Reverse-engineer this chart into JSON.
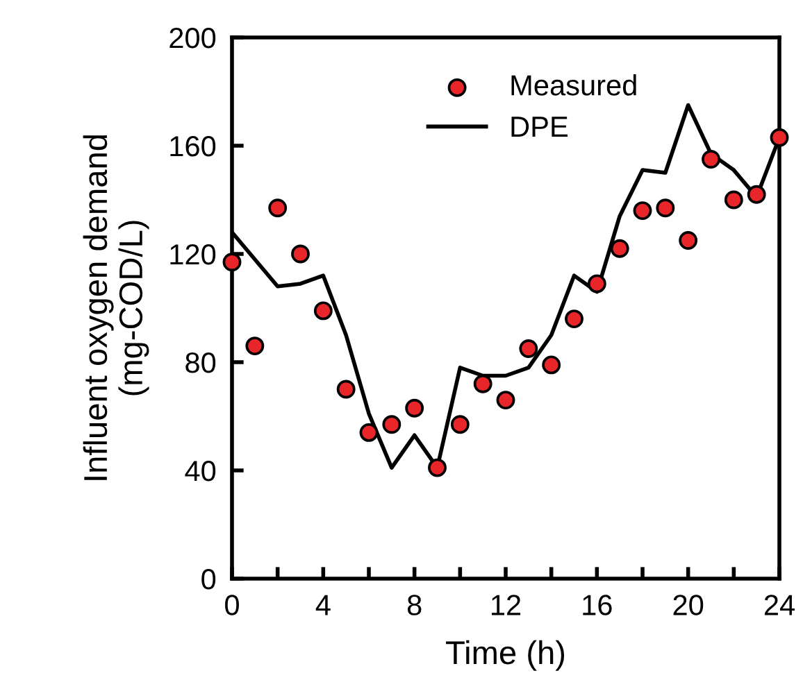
{
  "chart_data": {
    "type": "scatter",
    "xlabel": "Time (h)",
    "ylabel": "Influent oxygen demand\n(mg-COD/L)",
    "x": [
      0,
      1,
      2,
      3,
      4,
      5,
      6,
      7,
      8,
      9,
      10,
      11,
      12,
      13,
      14,
      15,
      16,
      17,
      18,
      19,
      20,
      21,
      22,
      23,
      24
    ],
    "series": [
      {
        "name": "Measured",
        "color": "#e8262a",
        "marker": "circle",
        "values": [
          117,
          86,
          137,
          120,
          99,
          70,
          54,
          57,
          63,
          41,
          57,
          72,
          66,
          85,
          79,
          96,
          109,
          122,
          136,
          137,
          125,
          155,
          140,
          142,
          163
        ]
      },
      {
        "name": "DPE",
        "type": "line",
        "color": "#000000",
        "marker": "none",
        "line_style": "solid",
        "x": [
          0,
          2,
          3,
          4,
          5,
          6,
          7,
          8,
          9,
          10,
          11,
          12,
          13,
          14,
          15,
          16,
          17,
          18,
          19,
          20,
          21,
          22,
          23,
          24
        ],
        "values": [
          128,
          108,
          109,
          112,
          90,
          61,
          41,
          53,
          41,
          78,
          75,
          75,
          78,
          90,
          112,
          106,
          134,
          151,
          150,
          175,
          157,
          151,
          141,
          163
        ]
      }
    ],
    "xlim": [
      0,
      24
    ],
    "ylim": [
      0,
      200
    ],
    "xticks": [
      0,
      {
        "value": 2,
        "label": null
      },
      4,
      {
        "value": 6,
        "label": null
      },
      8,
      {
        "value": 10,
        "label": null
      },
      12,
      {
        "value": 14,
        "label": null
      },
      16,
      {
        "value": 18,
        "label": null
      },
      20,
      {
        "value": 22,
        "label": null
      },
      24
    ],
    "yticks": [
      0,
      40,
      80,
      120,
      160,
      200
    ],
    "grid": false,
    "legend": "top"
  }
}
